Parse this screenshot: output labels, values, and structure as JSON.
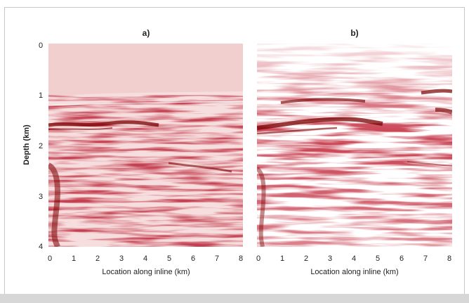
{
  "figure": {
    "panels": [
      {
        "id": "a",
        "title": "a)",
        "xlabel": "Location along inline (km)",
        "x_ticks": [
          "0",
          "1",
          "2",
          "3",
          "4",
          "5",
          "6",
          "7",
          "8"
        ]
      },
      {
        "id": "b",
        "title": "b)",
        "xlabel": "Location along inline (km)",
        "x_ticks": [
          "0",
          "1",
          "2",
          "3",
          "4",
          "5",
          "6",
          "7",
          "8"
        ]
      }
    ],
    "ylabel": "Depth (km)",
    "y_ticks": [
      "0",
      "1",
      "2",
      "3",
      "4"
    ],
    "colors": {
      "background_a": "#f2cfcf",
      "wiggle_dark": "#7a0000",
      "wiggle_light": "#ffffff"
    }
  }
}
